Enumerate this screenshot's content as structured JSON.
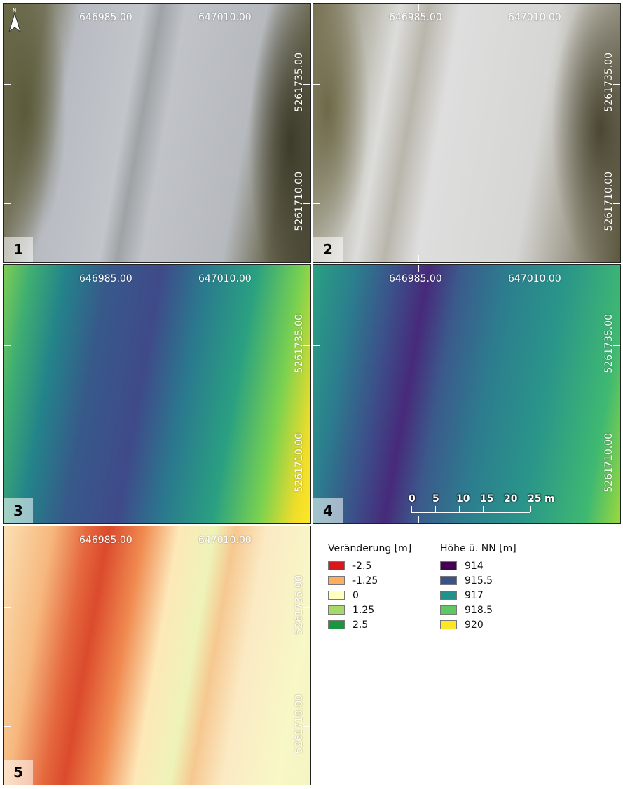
{
  "panels": [
    {
      "number": "1",
      "x_labels": [
        "646985.00",
        "647010.00"
      ],
      "y_labels": [
        "5261735.00",
        "5261710.00"
      ]
    },
    {
      "number": "2",
      "x_labels": [
        "646985.00",
        "647010.00"
      ],
      "y_labels": [
        "5261735.00",
        "5261710.00"
      ]
    },
    {
      "number": "3",
      "x_labels": [
        "646985.00",
        "647010.00"
      ],
      "y_labels": [
        "5261735.00",
        "5261710.00"
      ]
    },
    {
      "number": "4",
      "x_labels": [
        "646985.00",
        "647010.00"
      ],
      "y_labels": [
        "5261735.00",
        "5261710.00"
      ]
    },
    {
      "number": "5",
      "x_labels": [
        "646985.00",
        "647010.00"
      ],
      "y_labels": [
        "5261735.00",
        "5261710.00"
      ]
    }
  ],
  "north_arrow": {
    "label": "N"
  },
  "scale_bar": {
    "ticks": [
      "0",
      "5",
      "10",
      "15",
      "20",
      "25"
    ],
    "unit": "m"
  },
  "legend": {
    "change": {
      "title": "Veränderung [m]",
      "items": [
        {
          "label": "-2.5",
          "color": "#d7191c"
        },
        {
          "label": "-1.25",
          "color": "#fdae61"
        },
        {
          "label": "0",
          "color": "#ffffc0"
        },
        {
          "label": "1.25",
          "color": "#a6d96a"
        },
        {
          "label": "2.5",
          "color": "#1a9641"
        }
      ]
    },
    "height": {
      "title": "Höhe ü. NN [m]",
      "items": [
        {
          "label": "914",
          "color": "#440154"
        },
        {
          "label": "915.5",
          "color": "#3b528b"
        },
        {
          "label": "917",
          "color": "#21918c"
        },
        {
          "label": "918.5",
          "color": "#5ec962"
        },
        {
          "label": "920",
          "color": "#fde725"
        }
      ]
    }
  }
}
